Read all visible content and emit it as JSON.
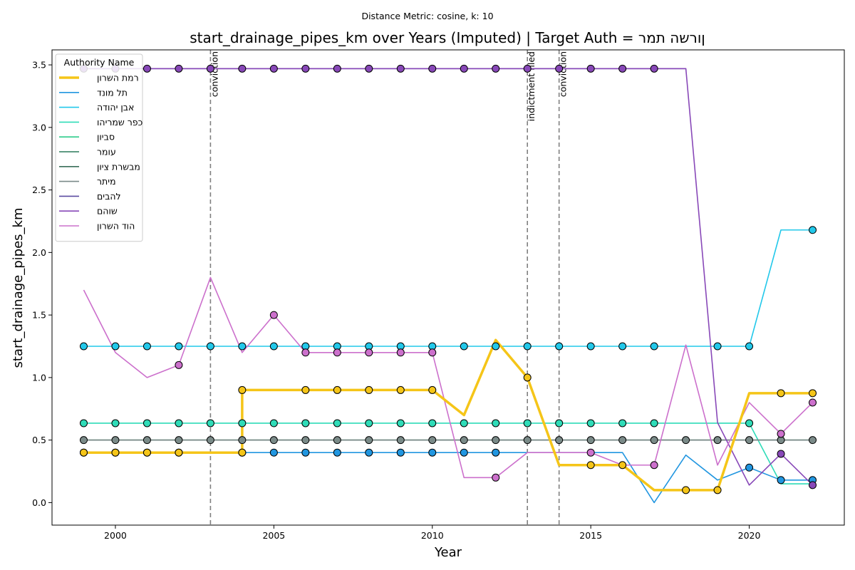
{
  "chart_data": {
    "type": "line",
    "suptitle": "Distance Metric: cosine, k: 10",
    "title": "start_drainage_pipes_km over Years (Imputed) | Target Auth = ןורשה תמר",
    "xlabel": "Year",
    "ylabel": "start_drainage_pipes_km",
    "xlim": [
      1998,
      2023
    ],
    "ylim": [
      -0.18,
      3.62
    ],
    "xticks": [
      2000,
      2005,
      2010,
      2015,
      2020
    ],
    "yticks": [
      0.0,
      0.5,
      1.0,
      1.5,
      2.0,
      2.5,
      3.0,
      3.5
    ],
    "grid": false,
    "legend": {
      "title": "Authority Name",
      "placement": "top-left"
    },
    "events": [
      {
        "x": 2003,
        "label": "conviction"
      },
      {
        "x": 2013,
        "label": "indictment filed"
      },
      {
        "x": 2014,
        "label": "conviction"
      }
    ],
    "series": [
      {
        "name": "ןורשה תמר",
        "color": "#f5c518",
        "target": true,
        "x": [
          1999,
          2000,
          2001,
          2002,
          2003,
          2004,
          2004,
          2005,
          2006,
          2007,
          2008,
          2009,
          2010,
          2011,
          2012,
          2013,
          2014,
          2015,
          2016,
          2017,
          2018,
          2019,
          2020,
          2021,
          2022
        ],
        "y": [
          0.4,
          0.4,
          0.4,
          0.4,
          0.4,
          0.4,
          0.9,
          0.9,
          0.9,
          0.9,
          0.9,
          0.9,
          0.9,
          0.7,
          1.3,
          1.0,
          0.3,
          0.3,
          0.3,
          0.1,
          0.1,
          0.1,
          0.875,
          0.875,
          0.875
        ],
        "markers": [
          1,
          1,
          1,
          1,
          0,
          1,
          1,
          0,
          1,
          1,
          1,
          1,
          1,
          0,
          0,
          1,
          0,
          1,
          1,
          0,
          1,
          1,
          0,
          1,
          1
        ]
      },
      {
        "name": "דנומ לת",
        "color": "#2196e0",
        "x": [
          1999,
          2000,
          2001,
          2002,
          2003,
          2004,
          2005,
          2006,
          2007,
          2008,
          2009,
          2010,
          2011,
          2012,
          2013,
          2014,
          2015,
          2016,
          2017,
          2018,
          2019,
          2020,
          2021,
          2022
        ],
        "y": [
          0.4,
          0.4,
          0.4,
          0.4,
          0.4,
          0.4,
          0.4,
          0.4,
          0.4,
          0.4,
          0.4,
          0.4,
          0.4,
          0.4,
          0.4,
          0.4,
          0.4,
          0.4,
          0.0,
          0.38,
          0.18,
          0.28,
          0.18,
          0.18
        ],
        "markers": [
          1,
          1,
          1,
          1,
          0,
          1,
          1,
          1,
          1,
          1,
          1,
          1,
          1,
          1,
          0,
          0,
          0,
          0,
          0,
          0,
          0,
          1,
          1,
          1
        ]
      },
      {
        "name": "הדוהי ןבא",
        "color": "#22c8ea",
        "x": [
          1999,
          2000,
          2001,
          2002,
          2003,
          2004,
          2005,
          2006,
          2007,
          2008,
          2009,
          2010,
          2011,
          2012,
          2013,
          2014,
          2015,
          2016,
          2017,
          2018,
          2019,
          2020,
          2021,
          2022
        ],
        "y": [
          1.25,
          1.25,
          1.25,
          1.25,
          1.25,
          1.25,
          1.25,
          1.25,
          1.25,
          1.25,
          1.25,
          1.25,
          1.25,
          1.25,
          1.25,
          1.25,
          1.25,
          1.25,
          1.25,
          1.25,
          1.25,
          1.25,
          2.18,
          2.18
        ],
        "markers": [
          1,
          1,
          1,
          1,
          1,
          1,
          1,
          1,
          1,
          1,
          1,
          1,
          1,
          1,
          1,
          1,
          1,
          1,
          1,
          0,
          1,
          1,
          0,
          1
        ]
      },
      {
        "name": "והירמש רפכ",
        "color": "#2fdcb8",
        "x": [
          1999,
          2000,
          2001,
          2002,
          2003,
          2004,
          2005,
          2006,
          2007,
          2008,
          2009,
          2010,
          2011,
          2012,
          2013,
          2014,
          2015,
          2016,
          2017,
          2018,
          2019,
          2020,
          2021,
          2022
        ],
        "y": [
          0.635,
          0.635,
          0.635,
          0.635,
          0.635,
          0.635,
          0.635,
          0.635,
          0.635,
          0.635,
          0.635,
          0.635,
          0.635,
          0.635,
          0.635,
          0.635,
          0.635,
          0.635,
          0.635,
          0.635,
          0.635,
          0.635,
          0.15,
          0.15
        ],
        "markers": [
          1,
          1,
          1,
          1,
          1,
          1,
          1,
          1,
          1,
          1,
          1,
          1,
          1,
          1,
          1,
          1,
          1,
          1,
          1,
          0,
          0,
          1,
          0,
          0
        ]
      },
      {
        "name": "ןויבס",
        "color": "#2ecc8a",
        "x": [
          1999,
          2000,
          2001,
          2002,
          2003,
          2004
        ],
        "y": [
          0.4,
          0.4,
          0.4,
          0.4,
          0.4,
          0.4
        ],
        "markers": [
          0,
          0,
          0,
          0,
          0,
          0
        ]
      },
      {
        "name": "רמוע",
        "color": "#2a7a5a",
        "x": [
          1999,
          2000,
          2001,
          2002,
          2003,
          2004,
          2005,
          2006,
          2007,
          2008,
          2009,
          2010,
          2011,
          2012,
          2013,
          2014,
          2015,
          2016,
          2017,
          2018,
          2019,
          2020,
          2021,
          2022
        ],
        "y": [
          0.5,
          0.5,
          0.5,
          0.5,
          0.5,
          0.5,
          0.5,
          0.5,
          0.5,
          0.5,
          0.5,
          0.5,
          0.5,
          0.5,
          0.5,
          0.5,
          0.5,
          0.5,
          0.5,
          0.5,
          0.5,
          0.5,
          0.5,
          0.5
        ],
        "markers": [
          0,
          0,
          0,
          0,
          0,
          0,
          0,
          0,
          0,
          0,
          0,
          0,
          0,
          0,
          0,
          0,
          0,
          0,
          0,
          0,
          0,
          0,
          0,
          0
        ]
      },
      {
        "name": "ןויצ תרשבמ",
        "color": "#3a6e5a",
        "x": [
          1999,
          2000,
          2001,
          2002,
          2003,
          2004,
          2005,
          2006,
          2007,
          2008,
          2009,
          2010,
          2011,
          2012,
          2013,
          2014,
          2015,
          2016,
          2017,
          2018,
          2019,
          2020,
          2021,
          2022
        ],
        "y": [
          0.5,
          0.5,
          0.5,
          0.5,
          0.5,
          0.5,
          0.5,
          0.5,
          0.5,
          0.5,
          0.5,
          0.5,
          0.5,
          0.5,
          0.5,
          0.5,
          0.5,
          0.5,
          0.5,
          0.5,
          0.5,
          0.5,
          0.5,
          0.5
        ],
        "markers": [
          0,
          0,
          0,
          0,
          0,
          0,
          0,
          0,
          0,
          0,
          0,
          0,
          0,
          0,
          0,
          0,
          0,
          0,
          0,
          0,
          0,
          0,
          0,
          0
        ]
      },
      {
        "name": "רתימ",
        "color": "#7a8a88",
        "x": [
          1999,
          2000,
          2001,
          2002,
          2003,
          2004,
          2005,
          2006,
          2007,
          2008,
          2009,
          2010,
          2011,
          2012,
          2013,
          2014,
          2015,
          2016,
          2017,
          2018,
          2019,
          2020,
          2021,
          2022
        ],
        "y": [
          0.5,
          0.5,
          0.5,
          0.5,
          0.5,
          0.5,
          0.5,
          0.5,
          0.5,
          0.5,
          0.5,
          0.5,
          0.5,
          0.5,
          0.5,
          0.5,
          0.5,
          0.5,
          0.5,
          0.5,
          0.5,
          0.5,
          0.5,
          0.5
        ],
        "markers": [
          1,
          1,
          1,
          1,
          1,
          1,
          1,
          1,
          1,
          1,
          1,
          1,
          1,
          1,
          1,
          1,
          1,
          1,
          1,
          1,
          1,
          1,
          1,
          1
        ]
      },
      {
        "name": "םיבהל",
        "color": "#5a4aa0",
        "x": [
          1999,
          2000,
          2001,
          2002,
          2003,
          2004,
          2005,
          2006,
          2007,
          2008,
          2009,
          2010,
          2011,
          2012,
          2013,
          2014,
          2015,
          2016,
          2017,
          2018
        ],
        "y": [
          3.47,
          3.47,
          3.47,
          3.47,
          3.47,
          3.47,
          3.47,
          3.47,
          3.47,
          3.47,
          3.47,
          3.47,
          3.47,
          3.47,
          3.47,
          3.47,
          3.47,
          3.47,
          3.47,
          3.47
        ],
        "markers": [
          0,
          0,
          0,
          0,
          0,
          0,
          0,
          0,
          0,
          0,
          0,
          0,
          0,
          0,
          0,
          0,
          0,
          0,
          0,
          0
        ]
      },
      {
        "name": "םהוש",
        "color": "#8848b8",
        "x": [
          1999,
          2000,
          2001,
          2002,
          2003,
          2004,
          2005,
          2006,
          2007,
          2008,
          2009,
          2010,
          2011,
          2012,
          2013,
          2014,
          2015,
          2016,
          2017,
          2018,
          2019,
          2020,
          2021,
          2022
        ],
        "y": [
          3.47,
          3.47,
          3.47,
          3.47,
          3.47,
          3.47,
          3.47,
          3.47,
          3.47,
          3.47,
          3.47,
          3.47,
          3.47,
          3.47,
          3.47,
          3.47,
          3.47,
          3.47,
          3.47,
          3.47,
          0.64,
          0.14,
          0.39,
          0.14
        ],
        "markers": [
          1,
          1,
          1,
          1,
          1,
          1,
          1,
          1,
          1,
          1,
          1,
          1,
          1,
          1,
          1,
          1,
          1,
          1,
          1,
          0,
          0,
          0,
          1,
          1
        ]
      },
      {
        "name": "ןורשה דוה",
        "color": "#cc70cc",
        "x": [
          1999,
          2000,
          2001,
          2002,
          2003,
          2004,
          2005,
          2006,
          2007,
          2008,
          2009,
          2010,
          2011,
          2012,
          2013,
          2014,
          2015,
          2016,
          2017,
          2018,
          2019,
          2020,
          2021,
          2022
        ],
        "y": [
          1.7,
          1.2,
          1.0,
          1.1,
          1.8,
          1.2,
          1.5,
          1.2,
          1.2,
          1.2,
          1.2,
          1.2,
          0.2,
          0.2,
          0.4,
          0.4,
          0.4,
          0.3,
          0.3,
          1.26,
          0.3,
          0.8,
          0.55,
          0.8
        ],
        "markers": [
          0,
          0,
          0,
          1,
          0,
          0,
          1,
          1,
          1,
          1,
          1,
          1,
          0,
          1,
          0,
          0,
          1,
          0,
          1,
          0,
          0,
          0,
          1,
          1
        ]
      }
    ]
  }
}
